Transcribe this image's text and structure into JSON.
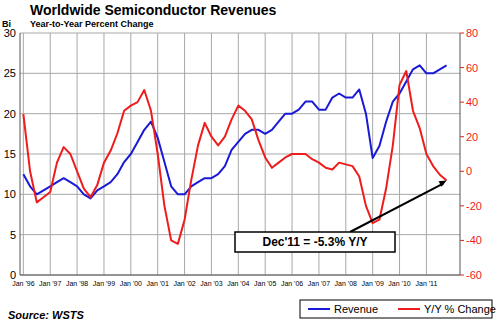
{
  "chart_data": {
    "type": "line",
    "title": "Worldwide Semiconductor Revenues",
    "subtitle": "Year-to-Year Percent Change",
    "y_label": "Bi",
    "source": "Source: WSTS",
    "annotation": "Dec'11 = -5.3% Y/Y",
    "categories": [
      "Jan '96",
      null,
      null,
      null,
      "Jan '97",
      null,
      null,
      null,
      "Jan '98",
      null,
      null,
      null,
      "Jan '99",
      null,
      null,
      null,
      "Jan '00",
      null,
      null,
      null,
      "Jan '01",
      null,
      null,
      null,
      "Jan '02",
      null,
      null,
      null,
      "Jan '03",
      null,
      null,
      null,
      "Jan '04",
      null,
      null,
      null,
      "Jan '05",
      null,
      null,
      null,
      "Jan '06",
      null,
      null,
      null,
      "Jan '07",
      null,
      null,
      null,
      "Jan '08",
      null,
      null,
      null,
      "Jan '09",
      null,
      null,
      null,
      "Jan '10",
      null,
      null,
      null,
      "Jan '11",
      null,
      null,
      null
    ],
    "series": [
      {
        "name": "Revenue",
        "color": "#1a1ad6",
        "values": [
          12.5,
          11,
          10,
          10.5,
          11,
          11.5,
          12,
          11.5,
          11,
          10,
          9.5,
          10.5,
          11,
          11.5,
          12.5,
          14,
          15,
          16.5,
          18,
          19,
          17,
          14,
          11,
          10,
          10,
          11,
          11.5,
          12,
          12,
          12.5,
          13.5,
          15.5,
          16.5,
          17.5,
          18,
          18,
          17.5,
          18,
          19,
          20,
          20,
          20.5,
          21.5,
          21.5,
          20.5,
          20.5,
          22,
          22.5,
          22,
          22,
          23,
          20,
          14.5,
          16,
          19,
          21.5,
          22.5,
          24,
          25.5,
          26,
          25,
          25,
          25.5,
          26
        ]
      },
      {
        "name": "Y/Y % Change",
        "color": "#ee1c1c",
        "axis": "y2",
        "values": [
          33,
          0,
          -18,
          -15,
          -12,
          5,
          14,
          10,
          0,
          -10,
          -15,
          -8,
          5,
          12,
          22,
          35,
          38,
          40,
          47,
          35,
          10,
          -20,
          -40,
          -42,
          -28,
          -5,
          15,
          28,
          20,
          15,
          20,
          30,
          38,
          35,
          30,
          18,
          8,
          2,
          5,
          8,
          10,
          10,
          10,
          7,
          5,
          2,
          1,
          5,
          4,
          3,
          -3,
          -20,
          -30,
          -28,
          -10,
          15,
          50,
          58,
          35,
          25,
          10,
          3,
          -2,
          -5.3
        ]
      }
    ],
    "ylim": [
      0,
      30
    ],
    "yticks": [
      0,
      5,
      10,
      15,
      20,
      25,
      30
    ],
    "y2lim": [
      -60,
      80
    ],
    "y2ticks": [
      -60,
      -40,
      -20,
      0,
      20,
      40,
      60,
      80
    ],
    "grid": true,
    "legend": "bottom-right"
  }
}
